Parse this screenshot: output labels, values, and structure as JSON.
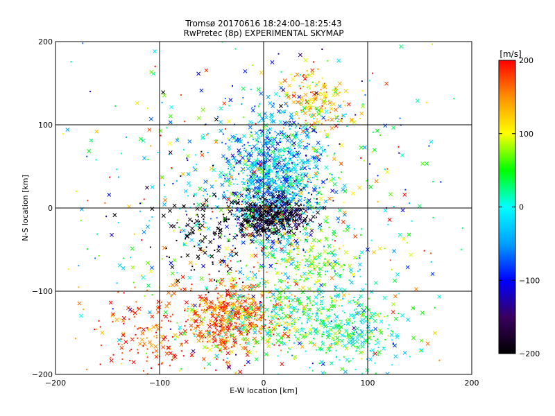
{
  "chart_data": {
    "type": "scatter",
    "title": "Tromsø 20170616 18:24:00–18:25:43",
    "subtitle": "RwPretec (8p) EXPERIMENTAL SKYMAP",
    "xlabel": "E-W location [km]",
    "ylabel": "N-S location [km]",
    "xlim": [
      -200,
      200
    ],
    "ylim": [
      -200,
      200
    ],
    "xticks": [
      -200,
      -100,
      0,
      100,
      200
    ],
    "yticks": [
      -200,
      -100,
      0,
      100,
      200
    ],
    "grid_lines": [
      -100,
      0,
      100
    ],
    "grid": true,
    "marker_types": [
      "cross",
      "dot"
    ],
    "colorbar": {
      "label": "[m/s]",
      "range": [
        -200,
        200
      ],
      "ticks": [
        200,
        100,
        0,
        -100,
        -200
      ],
      "colormap": [
        "#000000",
        "#3a0060",
        "#0000ff",
        "#00a0ff",
        "#00ffff",
        "#00ff00",
        "#ffff00",
        "#ff9000",
        "#ff0000"
      ]
    },
    "clusters": [
      {
        "cx": 10,
        "cy": 40,
        "sx": 22,
        "sy": 38,
        "n": 900,
        "v": -40,
        "vs": 45
      },
      {
        "cx": 8,
        "cy": -10,
        "sx": 18,
        "sy": 12,
        "n": 450,
        "v": -190,
        "vs": 25
      },
      {
        "cx": -30,
        "cy": -130,
        "sx": 22,
        "sy": 22,
        "n": 500,
        "v": 170,
        "vs": 40
      },
      {
        "cx": 35,
        "cy": -130,
        "sx": 45,
        "sy": 30,
        "n": 450,
        "v": 40,
        "vs": 45
      },
      {
        "cx": 50,
        "cy": 130,
        "sx": 15,
        "sy": 18,
        "n": 160,
        "v": 130,
        "vs": 40
      },
      {
        "cx": -100,
        "cy": -150,
        "sx": 35,
        "sy": 30,
        "n": 180,
        "v": 180,
        "vs": 30
      },
      {
        "cx": 0,
        "cy": 0,
        "sx": 75,
        "sy": 85,
        "n": 700,
        "v": 20,
        "vs": 90
      },
      {
        "cx": 85,
        "cy": -160,
        "sx": 25,
        "sy": 25,
        "n": 170,
        "v": 10,
        "vs": 35
      },
      {
        "cx": -55,
        "cy": -30,
        "sx": 20,
        "sy": 25,
        "n": 110,
        "v": -200,
        "vs": 20
      },
      {
        "cx": 40,
        "cy": -60,
        "sx": 25,
        "sy": 20,
        "n": 160,
        "v": 70,
        "vs": 40
      },
      {
        "cx": 0,
        "cy": 0,
        "sx": 130,
        "sy": 130,
        "n": 200,
        "v": 40,
        "vs": 110
      }
    ]
  }
}
